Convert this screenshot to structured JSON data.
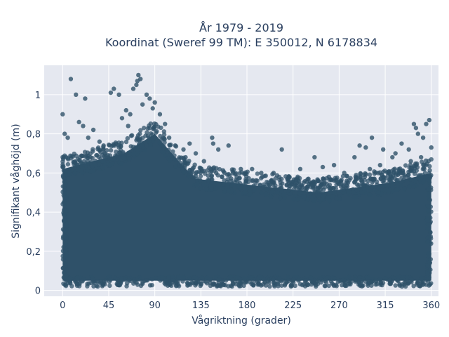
{
  "chart_data": {
    "type": "scatter",
    "title_lines": [
      "År 1979 - 2019",
      "Koordinat (Sweref 99 TM): E 350012, N 6178834"
    ],
    "xlabel": "Vågriktning (grader)",
    "ylabel": "Signifikant våghöjd (m)",
    "xlim": [
      -18,
      367
    ],
    "ylim": [
      -0.03,
      1.15
    ],
    "xticks": [
      0,
      45,
      90,
      135,
      180,
      225,
      270,
      315,
      360
    ],
    "xtick_labels": [
      "0",
      "45",
      "90",
      "135",
      "180",
      "225",
      "270",
      "315",
      "360"
    ],
    "yticks": [
      0,
      0.2,
      0.4,
      0.6,
      0.8,
      1
    ],
    "ytick_labels": [
      "0",
      "0,2",
      "0,4",
      "0,6",
      "0,8",
      "1"
    ],
    "grid": true,
    "marker_color": "#2f5169",
    "plot_bg": "#e5e8f0",
    "points": [
      [
        0,
        0.9
      ],
      [
        8,
        1.08
      ],
      [
        13,
        1.0
      ],
      [
        22,
        0.98
      ],
      [
        47,
        1.01
      ],
      [
        50,
        1.03
      ],
      [
        55,
        1.0
      ],
      [
        69,
        1.03
      ],
      [
        72,
        1.05
      ],
      [
        73,
        1.07
      ],
      [
        74,
        1.1
      ],
      [
        76,
        1.08
      ],
      [
        82,
        1.0
      ],
      [
        85,
        0.98
      ],
      [
        90,
        0.96
      ],
      [
        62,
        0.92
      ],
      [
        66,
        0.9
      ],
      [
        78,
        0.95
      ],
      [
        88,
        0.93
      ],
      [
        95,
        0.9
      ],
      [
        100,
        0.85
      ],
      [
        104,
        0.78
      ],
      [
        110,
        0.74
      ],
      [
        118,
        0.72
      ],
      [
        124,
        0.75
      ],
      [
        130,
        0.7
      ],
      [
        146,
        0.78
      ],
      [
        147,
        0.75
      ],
      [
        152,
        0.72
      ],
      [
        162,
        0.74
      ],
      [
        174,
        0.62
      ],
      [
        185,
        0.62
      ],
      [
        194,
        0.6
      ],
      [
        206,
        0.6
      ],
      [
        214,
        0.72
      ],
      [
        221,
        0.58
      ],
      [
        232,
        0.62
      ],
      [
        246,
        0.68
      ],
      [
        254,
        0.63
      ],
      [
        265,
        0.64
      ],
      [
        285,
        0.68
      ],
      [
        290,
        0.74
      ],
      [
        296,
        0.73
      ],
      [
        302,
        0.78
      ],
      [
        313,
        0.72
      ],
      [
        322,
        0.68
      ],
      [
        325,
        0.7
      ],
      [
        331,
        0.75
      ],
      [
        338,
        0.72
      ],
      [
        343,
        0.85
      ],
      [
        345,
        0.83
      ],
      [
        347,
        0.8
      ],
      [
        352,
        0.78
      ],
      [
        355,
        0.85
      ],
      [
        358,
        0.87
      ],
      [
        360,
        0.73
      ],
      [
        2,
        0.8
      ],
      [
        5,
        0.78
      ],
      [
        16,
        0.86
      ],
      [
        20,
        0.84
      ],
      [
        25,
        0.78
      ],
      [
        30,
        0.82
      ],
      [
        36,
        0.76
      ],
      [
        40,
        0.74
      ],
      [
        58,
        0.88
      ],
      [
        64,
        0.84
      ],
      [
        120,
        0.68
      ],
      [
        138,
        0.66
      ],
      [
        150,
        0.6
      ],
      [
        170,
        0.58
      ],
      [
        190,
        0.56
      ],
      [
        220,
        0.56
      ],
      [
        240,
        0.57
      ],
      [
        260,
        0.58
      ],
      [
        275,
        0.6
      ],
      [
        300,
        0.62
      ],
      [
        310,
        0.64
      ],
      [
        340,
        0.66
      ],
      [
        350,
        0.68
      ]
    ]
  }
}
